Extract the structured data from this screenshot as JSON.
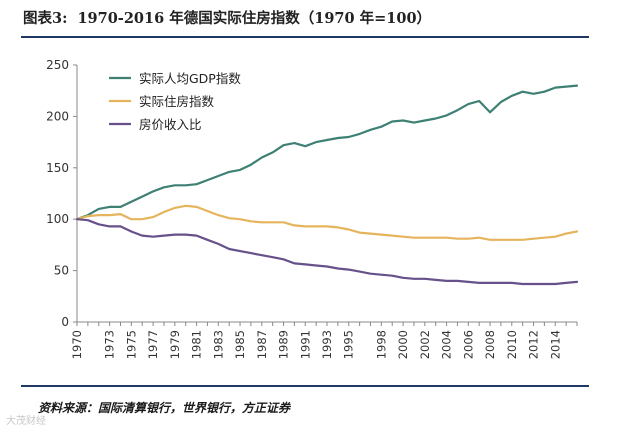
{
  "header": {
    "prefix": "图表3:",
    "title": "1970-2016 年德国实际住房指数（1970 年=100）"
  },
  "footer": {
    "source": "资料来源：国际清算银行，世界银行，方正证券"
  },
  "watermark": "大茂财经",
  "chart_data": {
    "type": "line",
    "title": "",
    "xlabel": "",
    "ylabel": "",
    "ylim": [
      0,
      250
    ],
    "yticks": [
      0,
      50,
      100,
      150,
      200,
      250
    ],
    "xlim": [
      1970,
      2016
    ],
    "xticks": [
      "1970",
      "1973",
      "1975",
      "1977",
      "1979",
      "1981",
      "1983",
      "1985",
      "1987",
      "1989",
      "1991",
      "1993",
      "1995",
      "1998",
      "2000",
      "2002",
      "2004",
      "2006",
      "2008",
      "2010",
      "2012",
      "2014"
    ],
    "grid": false,
    "legend_position": "top-left",
    "series": [
      {
        "name": "实际人均GDP指数",
        "color": "#3e8074",
        "x": [
          1970,
          1971,
          1972,
          1973,
          1974,
          1975,
          1976,
          1977,
          1978,
          1979,
          1980,
          1981,
          1982,
          1983,
          1984,
          1985,
          1986,
          1987,
          1988,
          1989,
          1990,
          1991,
          1992,
          1993,
          1994,
          1995,
          1996,
          1997,
          1998,
          1999,
          2000,
          2001,
          2002,
          2003,
          2004,
          2005,
          2006,
          2007,
          2008,
          2009,
          2010,
          2011,
          2012,
          2013,
          2014,
          2015,
          2016
        ],
        "values": [
          100,
          104,
          110,
          112,
          112,
          117,
          122,
          127,
          131,
          133,
          133,
          134,
          138,
          142,
          146,
          148,
          153,
          160,
          165,
          172,
          174,
          171,
          175,
          177,
          179,
          180,
          183,
          187,
          190,
          195,
          196,
          194,
          196,
          198,
          201,
          206,
          212,
          215,
          204,
          214,
          220,
          224,
          222,
          224,
          228,
          229,
          230
        ]
      },
      {
        "name": "实际住房指数",
        "color": "#e5b45c",
        "x": [
          1970,
          1971,
          1972,
          1973,
          1974,
          1975,
          1976,
          1977,
          1978,
          1979,
          1980,
          1981,
          1982,
          1983,
          1984,
          1985,
          1986,
          1987,
          1988,
          1989,
          1990,
          1991,
          1992,
          1993,
          1994,
          1995,
          1996,
          1997,
          1998,
          1999,
          2000,
          2001,
          2002,
          2003,
          2004,
          2005,
          2006,
          2007,
          2008,
          2009,
          2010,
          2011,
          2012,
          2013,
          2014,
          2015,
          2016
        ],
        "values": [
          100,
          103,
          104,
          104,
          105,
          100,
          100,
          102,
          107,
          111,
          113,
          112,
          108,
          104,
          101,
          100,
          98,
          97,
          97,
          97,
          94,
          93,
          93,
          93,
          92,
          90,
          87,
          86,
          85,
          84,
          83,
          82,
          82,
          82,
          82,
          81,
          81,
          82,
          80,
          80,
          80,
          80,
          81,
          82,
          83,
          86,
          88
        ]
      },
      {
        "name": "房价收入比",
        "color": "#66518a",
        "x": [
          1970,
          1971,
          1972,
          1973,
          1974,
          1975,
          1976,
          1977,
          1978,
          1979,
          1980,
          1981,
          1982,
          1983,
          1984,
          1985,
          1986,
          1987,
          1988,
          1989,
          1990,
          1991,
          1992,
          1993,
          1994,
          1995,
          1996,
          1997,
          1998,
          1999,
          2000,
          2001,
          2002,
          2003,
          2004,
          2005,
          2006,
          2007,
          2008,
          2009,
          2010,
          2011,
          2012,
          2013,
          2014,
          2015,
          2016
        ],
        "values": [
          100,
          99,
          95,
          93,
          93,
          88,
          84,
          83,
          84,
          85,
          85,
          84,
          80,
          76,
          71,
          69,
          67,
          65,
          63,
          61,
          57,
          56,
          55,
          54,
          52,
          51,
          49,
          47,
          46,
          45,
          43,
          42,
          42,
          41,
          40,
          40,
          39,
          38,
          38,
          38,
          38,
          37,
          37,
          37,
          37,
          38,
          39
        ]
      }
    ]
  }
}
